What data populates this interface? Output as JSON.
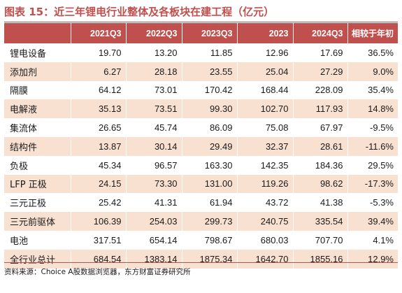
{
  "title": "图表 15：近三年锂电行业整体及各板块在建工程（亿元）",
  "table": {
    "headers": [
      "",
      "2021Q3",
      "2022Q3",
      "2023Q3",
      "2023",
      "2024Q3",
      "相较于年初"
    ],
    "rows": [
      [
        "锂电设备",
        "19.70",
        "13.20",
        "11.85",
        "12.96",
        "17.69",
        "36.5%"
      ],
      [
        "添加剂",
        "6.27",
        "28.18",
        "23.55",
        "25.04",
        "27.29",
        "9.0%"
      ],
      [
        "隔膜",
        "64.12",
        "73.01",
        "170.42",
        "168.44",
        "228.09",
        "35.4%"
      ],
      [
        "电解液",
        "35.13",
        "73.51",
        "99.30",
        "102.70",
        "117.93",
        "14.8%"
      ],
      [
        "集流体",
        "26.65",
        "45.74",
        "86.09",
        "75.08",
        "67.97",
        "-9.5%"
      ],
      [
        "结构件",
        "13.87",
        "30.14",
        "29.49",
        "32.37",
        "28.61",
        "-11.6%"
      ],
      [
        "负极",
        "45.34",
        "96.57",
        "163.30",
        "142.35",
        "184.36",
        "29.5%"
      ],
      [
        "LFP 正极",
        "24.15",
        "73.30",
        "131.00",
        "119.26",
        "98.62",
        "-17.3%"
      ],
      [
        "三元正极",
        "25.42",
        "41.31",
        "61.94",
        "43.72",
        "41.38",
        "-5.3%"
      ],
      [
        "三元前驱体",
        "106.39",
        "254.03",
        "299.73",
        "240.75",
        "335.54",
        "39.4%"
      ],
      [
        "电池",
        "317.51",
        "654.14",
        "798.67",
        "680.03",
        "707.70",
        "4.1%"
      ],
      [
        "全行业总计",
        "684.54",
        "1383.14",
        "1875.34",
        "1642.70",
        "1855.16",
        "12.9%"
      ]
    ]
  },
  "source": "资料来源：Choice A股数据浏览器，东方财富证券研究所",
  "colors": {
    "accent": "#c0504d",
    "stripe": "#f9e1d2",
    "header_text": "#ffffff"
  }
}
